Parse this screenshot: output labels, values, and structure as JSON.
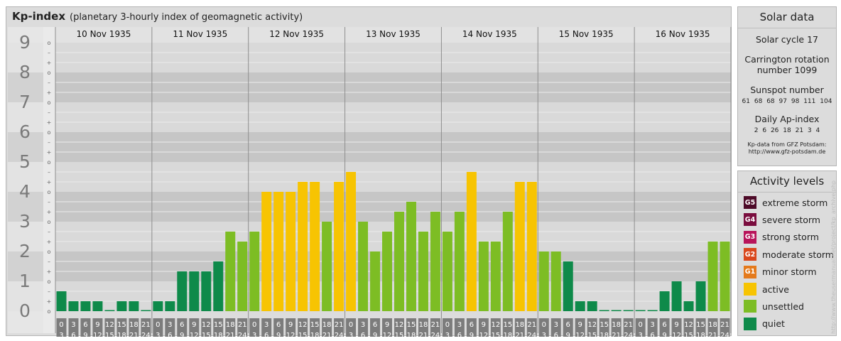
{
  "header": {
    "title": "Kp-index",
    "subtitle": "(planetary 3-hourly index of geomagnetic activity)"
  },
  "chart_data": {
    "type": "bar",
    "title": "Kp-index",
    "subtitle": "(planetary 3-hourly index of geomagnetic activity)",
    "ylim": [
      0,
      9
    ],
    "y_ticks": [
      "0",
      "1",
      "2",
      "3",
      "4",
      "5",
      "6",
      "7",
      "8",
      "9"
    ],
    "y_minor_labels": [
      "o",
      "+",
      "–"
    ],
    "days": [
      "10 Nov 1935",
      "11 Nov 1935",
      "12 Nov 1935",
      "13 Nov 1935",
      "14 Nov 1935",
      "15 Nov 1935",
      "16 Nov 1935"
    ],
    "interval_start_labels": [
      "0",
      "3",
      "6",
      "9",
      "12",
      "15",
      "18",
      "21"
    ],
    "interval_end_labels": [
      "3",
      "6",
      "9",
      "12",
      "15",
      "18",
      "21",
      "24"
    ],
    "values": [
      0.667,
      0.333,
      0.333,
      0.333,
      0,
      0.333,
      0.333,
      0,
      0.333,
      0.333,
      1.333,
      1.333,
      1.333,
      1.667,
      2.667,
      2.333,
      2.667,
      4,
      4,
      4,
      4.333,
      4.333,
      3,
      4.333,
      4.667,
      3,
      2,
      2.667,
      3.333,
      3.667,
      2.667,
      3.333,
      2.667,
      3.333,
      4.667,
      2.333,
      2.333,
      3.333,
      4.333,
      4.333,
      2,
      2,
      1.667,
      0.333,
      0.333,
      0,
      0,
      0,
      0,
      0,
      0.667,
      1,
      0.333,
      1,
      2.333,
      2.333
    ],
    "level_colors": {
      "quiet": "#0e8a4a",
      "unsettled": "#7dbd24",
      "active": "#f7c402",
      "G1": "#e47a1c",
      "G2": "#d9481d",
      "G3": "#b8145a",
      "G4": "#7a0d3e",
      "G5": "#4d0a28"
    }
  },
  "solar": {
    "title": "Solar data",
    "cycle": "Solar cycle 17",
    "carrington_line1": "Carrington rotation",
    "carrington_line2": "number 1099",
    "sunspot_label": "Sunspot number",
    "sunspot_values": [
      "61",
      "68",
      "68",
      "97",
      "98",
      "111",
      "104"
    ],
    "ap_label": "Daily Ap-index",
    "ap_values": [
      "2",
      "6",
      "26",
      "18",
      "21",
      "3",
      "4"
    ],
    "credit_line1": "Kp-data from GFZ Potsdam:",
    "credit_line2": "http://www.gfz-potsdam.de"
  },
  "activity": {
    "title": "Activity levels",
    "items": [
      {
        "code": "G5",
        "label": "extreme storm",
        "color": "#4d0a28"
      },
      {
        "code": "G4",
        "label": "severe storm",
        "color": "#7a0d3e"
      },
      {
        "code": "G3",
        "label": "strong storm",
        "color": "#b8145a"
      },
      {
        "code": "G2",
        "label": "moderate storm",
        "color": "#d9481d"
      },
      {
        "code": "G1",
        "label": "minor storm",
        "color": "#e47a1c"
      },
      {
        "code": "",
        "label": "active",
        "color": "#f7c402"
      },
      {
        "code": "",
        "label": "unsettled",
        "color": "#7dbd24"
      },
      {
        "code": "",
        "label": "quiet",
        "color": "#0e8a4a"
      }
    ]
  },
  "watermark": "http://www.theusermanual.net/project/kp_archive.php"
}
